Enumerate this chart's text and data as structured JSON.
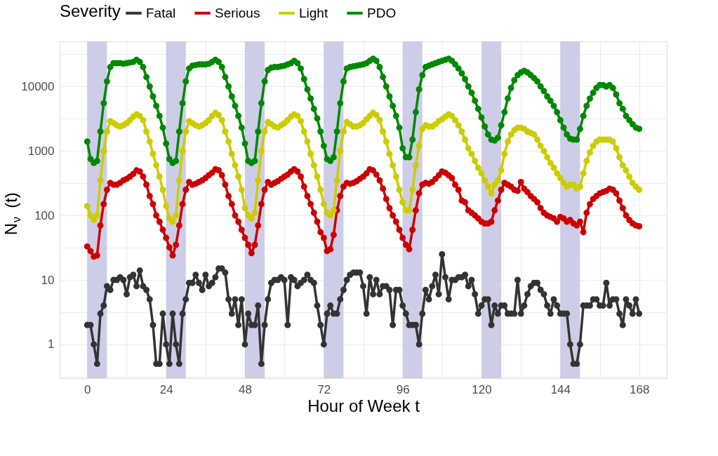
{
  "chart_data": {
    "type": "line",
    "xlabel": "Hour of Week t",
    "ylabel": "N$_{ν}$(t)",
    "legend_title": "Severity",
    "legend": "top",
    "grid": true,
    "marker": "circle",
    "line_style": "solid",
    "log": "y",
    "x": [
      0,
      1,
      2,
      3,
      4,
      5,
      6,
      7,
      8,
      9,
      10,
      11,
      12,
      13,
      14,
      15,
      16,
      17,
      18,
      19,
      20,
      21,
      22,
      23,
      24,
      25,
      26,
      27,
      28,
      29,
      30,
      31,
      32,
      33,
      34,
      35,
      36,
      37,
      38,
      39,
      40,
      41,
      42,
      43,
      44,
      45,
      46,
      47,
      48,
      49,
      50,
      51,
      52,
      53,
      54,
      55,
      56,
      57,
      58,
      59,
      60,
      61,
      62,
      63,
      64,
      65,
      66,
      67,
      68,
      69,
      70,
      71,
      72,
      73,
      74,
      75,
      76,
      77,
      78,
      79,
      80,
      81,
      82,
      83,
      84,
      85,
      86,
      87,
      88,
      89,
      90,
      91,
      92,
      93,
      94,
      95,
      96,
      97,
      98,
      99,
      100,
      101,
      102,
      103,
      104,
      105,
      106,
      107,
      108,
      109,
      110,
      111,
      112,
      113,
      114,
      115,
      116,
      117,
      118,
      119,
      120,
      121,
      122,
      123,
      124,
      125,
      126,
      127,
      128,
      129,
      130,
      131,
      132,
      133,
      134,
      135,
      136,
      137,
      138,
      139,
      140,
      141,
      142,
      143,
      144,
      145,
      146,
      147,
      148,
      149,
      150,
      151,
      152,
      153,
      154,
      155,
      156,
      157,
      158,
      159,
      160,
      161,
      162,
      163,
      164,
      165,
      166,
      167,
      168
    ],
    "xlim": [
      -8.4,
      176.4
    ],
    "xticks": [
      0,
      {
        "value": 12,
        "label": null
      },
      24,
      {
        "value": 36,
        "label": null
      },
      48,
      {
        "value": 60,
        "label": null
      },
      72,
      {
        "value": 84,
        "label": null
      },
      96,
      {
        "value": 108,
        "label": null
      },
      120,
      {
        "value": 132,
        "label": null
      },
      144,
      {
        "value": 156,
        "label": null
      },
      168
    ],
    "ylim": [
      0.3,
      50000
    ],
    "yticks": [
      {
        "value": 0.3162,
        "label": null
      },
      1,
      {
        "value": 3.162,
        "label": null
      },
      10,
      {
        "value": 31.62,
        "label": null
      },
      100,
      {
        "value": 316.2,
        "label": null
      },
      1000,
      {
        "value": 3162,
        "label": null
      },
      10000,
      {
        "value": 31623,
        "label": null
      }
    ],
    "bands": [
      {
        "axis": "x",
        "from": 0,
        "to": 6,
        "color": "#c8c8e6"
      },
      {
        "axis": "x",
        "from": 24,
        "to": 30,
        "color": "#c8c8e6"
      },
      {
        "axis": "x",
        "from": 48,
        "to": 54,
        "color": "#c8c8e6"
      },
      {
        "axis": "x",
        "from": 72,
        "to": 78,
        "color": "#c8c8e6"
      },
      {
        "axis": "x",
        "from": 96,
        "to": 102,
        "color": "#c8c8e6"
      },
      {
        "axis": "x",
        "from": 120,
        "to": 126,
        "color": "#c8c8e6"
      },
      {
        "axis": "x",
        "from": 144,
        "to": 150,
        "color": "#c8c8e6"
      }
    ],
    "series": [
      {
        "name": "Fatal",
        "color": "#333333",
        "values": [
          2,
          2,
          1,
          0.5,
          3,
          4,
          8,
          7,
          10,
          10,
          11,
          10,
          6,
          11,
          12,
          8,
          14,
          8,
          7,
          5,
          2,
          0.5,
          0.5,
          3,
          1,
          0.5,
          3,
          1,
          0.5,
          3,
          5,
          9,
          9,
          12,
          9,
          7,
          12,
          8,
          9,
          11,
          15,
          15,
          13,
          5,
          3,
          5,
          2,
          5,
          1,
          3,
          2,
          2,
          4,
          0.5,
          2,
          5,
          9,
          10,
          10,
          11,
          10,
          2,
          11,
          10,
          8,
          9,
          10,
          12,
          10,
          9,
          4,
          2,
          1,
          3,
          4,
          3,
          3,
          5,
          7,
          10,
          12,
          13,
          13,
          13,
          8,
          3,
          11,
          6,
          10,
          6,
          8,
          8,
          7,
          2,
          7,
          7,
          4,
          3,
          2,
          2,
          2,
          1,
          3,
          7,
          5,
          8,
          12,
          6,
          25,
          11,
          5,
          10,
          10,
          11,
          11,
          12,
          8,
          10,
          6,
          3,
          4,
          5,
          5,
          2,
          4,
          3,
          4,
          4,
          3,
          3,
          3,
          10,
          3,
          4,
          6,
          8,
          9,
          9,
          7,
          6,
          4,
          3,
          5,
          4,
          3,
          3,
          3,
          1,
          0.5,
          0.5,
          1,
          4,
          4,
          4,
          5,
          5,
          4,
          4,
          9,
          4,
          5,
          5,
          3,
          2,
          5,
          4,
          3,
          5,
          3
        ]
      },
      {
        "name": "Serious",
        "color": "#cc0000",
        "values": [
          33,
          28,
          23,
          24,
          70,
          150,
          250,
          320,
          300,
          300,
          320,
          350,
          370,
          400,
          440,
          500,
          480,
          400,
          300,
          200,
          150,
          100,
          80,
          60,
          45,
          32,
          24,
          35,
          70,
          150,
          250,
          330,
          300,
          310,
          330,
          350,
          380,
          420,
          460,
          520,
          500,
          420,
          300,
          200,
          150,
          100,
          80,
          60,
          45,
          35,
          26,
          35,
          70,
          150,
          250,
          330,
          300,
          320,
          340,
          370,
          400,
          430,
          480,
          520,
          480,
          400,
          280,
          200,
          150,
          110,
          80,
          55,
          45,
          28,
          30,
          50,
          120,
          200,
          280,
          320,
          310,
          320,
          340,
          370,
          400,
          450,
          520,
          500,
          430,
          350,
          260,
          180,
          130,
          100,
          80,
          60,
          45,
          35,
          30,
          60,
          120,
          220,
          300,
          320,
          310,
          330,
          370,
          420,
          480,
          460,
          420,
          380,
          300,
          250,
          170,
          160,
          120,
          110,
          100,
          90,
          80,
          75,
          75,
          80,
          120,
          170,
          250,
          320,
          300,
          280,
          250,
          240,
          330,
          260,
          230,
          200,
          180,
          160,
          130,
          110,
          100,
          95,
          90,
          80,
          95,
          90,
          80,
          85,
          75,
          70,
          80,
          55,
          110,
          150,
          180,
          200,
          220,
          230,
          240,
          260,
          250,
          220,
          170,
          130,
          100,
          85,
          75,
          70,
          68
        ]
      },
      {
        "name": "Light",
        "color": "#cccc00",
        "values": [
          140,
          100,
          85,
          100,
          350,
          1000,
          2000,
          2900,
          2700,
          2500,
          2400,
          2500,
          2700,
          3000,
          3400,
          3700,
          3500,
          3000,
          2000,
          1400,
          900,
          600,
          400,
          250,
          140,
          90,
          80,
          100,
          350,
          1000,
          2000,
          2900,
          2700,
          2500,
          2400,
          2500,
          2700,
          3000,
          3500,
          3900,
          3600,
          3000,
          2000,
          1400,
          900,
          600,
          400,
          250,
          130,
          100,
          90,
          110,
          350,
          1000,
          2000,
          2800,
          2600,
          2400,
          2300,
          2500,
          2700,
          3000,
          3400,
          3700,
          3500,
          2900,
          2000,
          1400,
          900,
          600,
          400,
          250,
          150,
          110,
          100,
          120,
          350,
          1000,
          2000,
          2800,
          2600,
          2400,
          2400,
          2500,
          2700,
          3100,
          3500,
          3900,
          3600,
          3000,
          2000,
          1400,
          900,
          600,
          400,
          250,
          160,
          120,
          120,
          250,
          600,
          1200,
          2200,
          2500,
          2400,
          2400,
          2600,
          2900,
          3100,
          3400,
          3700,
          3500,
          3000,
          2500,
          2000,
          1500,
          1100,
          900,
          700,
          550,
          450,
          350,
          280,
          220,
          300,
          350,
          500,
          900,
          1400,
          1800,
          2100,
          2300,
          2300,
          2200,
          2000,
          1900,
          1800,
          1500,
          1200,
          1000,
          800,
          650,
          550,
          450,
          380,
          320,
          280,
          300,
          300,
          260,
          280,
          450,
          700,
          950,
          1200,
          1400,
          1500,
          1500,
          1500,
          1500,
          1400,
          1100,
          800,
          600,
          500,
          400,
          320,
          280,
          250
        ]
      },
      {
        "name": "PDO",
        "color": "#008800",
        "values": [
          1400,
          750,
          650,
          700,
          2000,
          5500,
          12000,
          20000,
          23000,
          23000,
          23000,
          22500,
          23000,
          23500,
          24000,
          26000,
          24000,
          20000,
          14000,
          10000,
          7000,
          5000,
          3500,
          2300,
          1300,
          750,
          650,
          700,
          2000,
          5500,
          12000,
          19000,
          21000,
          21500,
          22000,
          22000,
          22000,
          22500,
          24000,
          26000,
          24000,
          20000,
          14000,
          10000,
          7000,
          5000,
          3500,
          2300,
          1300,
          700,
          650,
          700,
          2000,
          5500,
          12000,
          18000,
          19500,
          20000,
          20000,
          20500,
          21000,
          22000,
          23000,
          25000,
          23000,
          19000,
          13000,
          9000,
          6500,
          4500,
          3200,
          2000,
          1200,
          750,
          700,
          800,
          2000,
          5500,
          12000,
          19000,
          20000,
          20500,
          21000,
          21500,
          22000,
          23000,
          25000,
          27000,
          25000,
          20000,
          14000,
          10000,
          7000,
          5000,
          3500,
          2300,
          1100,
          800,
          800,
          1500,
          4000,
          9000,
          15000,
          20000,
          21000,
          22000,
          23000,
          24000,
          25000,
          26000,
          27000,
          25000,
          22000,
          19000,
          16000,
          13000,
          10000,
          8000,
          6000,
          4500,
          3300,
          2400,
          1800,
          1500,
          1450,
          1600,
          2500,
          4000,
          6500,
          9500,
          12500,
          15000,
          16500,
          17500,
          16500,
          15000,
          13500,
          12000,
          10000,
          8500,
          7000,
          6000,
          5000,
          4000,
          3000,
          2300,
          1800,
          1550,
          1500,
          1500,
          2200,
          3500,
          5000,
          6500,
          8000,
          9500,
          10500,
          10500,
          10000,
          10500,
          9500,
          7500,
          5500,
          4500,
          3500,
          3000,
          2600,
          2300,
          2200
        ]
      }
    ]
  }
}
